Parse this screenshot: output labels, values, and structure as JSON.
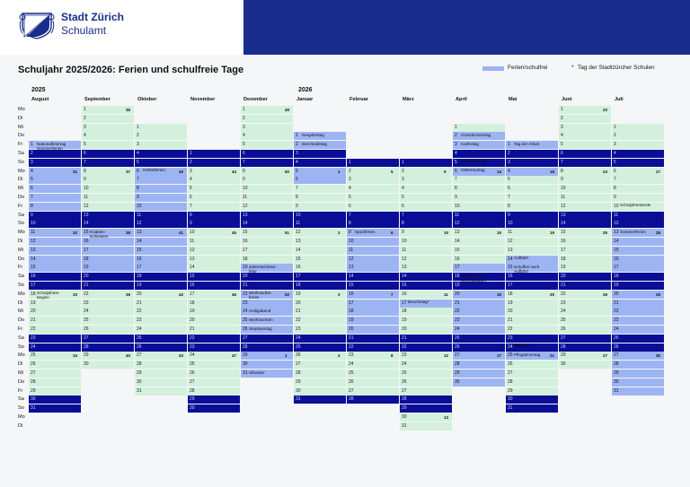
{
  "header": {
    "org_name": "Stadt Zürich",
    "org_sub": "Schulamt",
    "logo_icon": "zurich-coat-of-arms-icon",
    "band_color": "#1a2d8c"
  },
  "title": "Schuljahr 2025/2026: Ferien und schulfreie Tage",
  "legend": {
    "holiday_label": "Ferien/schulfrei",
    "marker": "*",
    "school_day_label": "Tag der Stadtzürcher Schulen"
  },
  "years": [
    "2025",
    "2026"
  ],
  "months": [
    {
      "name": "August",
      "first_weekday": 4,
      "days": 31,
      "holidays": [
        1,
        2,
        3,
        4,
        5,
        6,
        7,
        8,
        9,
        10,
        11,
        12,
        13,
        14,
        15,
        16,
        17
      ],
      "first_kw": 31
    },
    {
      "name": "September",
      "first_weekday": 0,
      "days": 30,
      "holidays": [
        15,
        16,
        17,
        18,
        19
      ],
      "first_kw": 36
    },
    {
      "name": "Oktober",
      "first_weekday": 2,
      "days": 31,
      "holidays": [
        6,
        7,
        8,
        9,
        10,
        11,
        12,
        13,
        14,
        15,
        16,
        17,
        18,
        19
      ],
      "first_kw": 40
    },
    {
      "name": "November",
      "first_weekday": 5,
      "days": 30,
      "holidays": [],
      "first_kw": 44
    },
    {
      "name": "Dezember",
      "first_weekday": 0,
      "days": 31,
      "holidays": [
        19,
        20,
        21,
        22,
        23,
        24,
        25,
        26,
        27,
        28,
        29,
        30,
        31
      ],
      "first_kw": 49
    },
    {
      "name": "Januar",
      "first_weekday": 3,
      "days": 31,
      "holidays": [
        1,
        2,
        3,
        4,
        5,
        6
      ],
      "first_kw": 1
    },
    {
      "name": "Februar",
      "first_weekday": 6,
      "days": 28,
      "holidays": [
        9,
        10,
        11,
        12,
        13,
        14,
        15,
        16,
        17,
        18,
        19,
        20,
        21,
        22
      ],
      "first_kw": 5
    },
    {
      "name": "März",
      "first_weekday": 6,
      "days": 31,
      "holidays": [
        17
      ],
      "first_kw": 9
    },
    {
      "name": "April",
      "first_weekday": 2,
      "days": 30,
      "holidays": [
        2,
        3,
        4,
        5,
        6,
        17,
        18,
        19,
        20,
        21,
        22,
        23,
        24,
        25,
        26,
        27,
        28,
        29,
        30
      ],
      "first_kw": 14
    },
    {
      "name": "Mai",
      "first_weekday": 4,
      "days": 31,
      "holidays": [
        1,
        2,
        3,
        4,
        14,
        15,
        16,
        17,
        24,
        25
      ],
      "first_kw": 18
    },
    {
      "name": "Juni",
      "first_weekday": 0,
      "days": 30,
      "holidays": [],
      "first_kw": 23
    },
    {
      "name": "Juli",
      "first_weekday": 2,
      "days": 31,
      "holidays": [
        11,
        12,
        13,
        14,
        15,
        16,
        17,
        18,
        19,
        20,
        21,
        22,
        23,
        24,
        25,
        26,
        27,
        28,
        29,
        30,
        31
      ],
      "first_kw": 27
    }
  ],
  "weekdays": [
    "Mo",
    "Di",
    "Mi",
    "Do",
    "Fr",
    "Sa",
    "So",
    "Mo",
    "Di",
    "Mi",
    "Do",
    "Fr",
    "Sa",
    "So",
    "Mo",
    "Di",
    "Mi",
    "Do",
    "Fr",
    "Sa",
    "So",
    "Mo",
    "Di",
    "Mi",
    "Do",
    "Fr",
    "Sa",
    "So",
    "Mo",
    "Di",
    "Mi",
    "Do",
    "Fr",
    "Sa",
    "So",
    "Mo",
    "Di"
  ],
  "events": [
    {
      "month": 0,
      "day": 1,
      "text": "Nationalfeiertag\nSommerferien"
    },
    {
      "month": 0,
      "day": 18,
      "text": "Schuljahres-\nbeginn"
    },
    {
      "month": 1,
      "day": 15,
      "text": "Knaben-\nschiessen"
    },
    {
      "month": 2,
      "day": 6,
      "text": "Herbstferien"
    },
    {
      "month": 4,
      "day": 22,
      "text": "Weihnachts-\nferien"
    },
    {
      "month": 4,
      "day": 24,
      "text": "Heiligabend"
    },
    {
      "month": 4,
      "day": 25,
      "text": "Weihnachten"
    },
    {
      "month": 4,
      "day": 26,
      "text": "Stephanstag"
    },
    {
      "month": 4,
      "day": 19,
      "text": "Jahresschluss-\nfeier"
    },
    {
      "month": 4,
      "day": 31,
      "text": "Silvester"
    },
    {
      "month": 5,
      "day": 1,
      "text": "Neujahrstag"
    },
    {
      "month": 5,
      "day": 2,
      "text": "Berchtoldstag"
    },
    {
      "month": 6,
      "day": 9,
      "text": "Sportferien"
    },
    {
      "month": 7,
      "day": 17,
      "text": "Beuchetag*"
    },
    {
      "month": 8,
      "day": 2,
      "text": "Gründonnerstag"
    },
    {
      "month": 8,
      "day": 3,
      "text": "Karfreitag"
    },
    {
      "month": 8,
      "day": 5,
      "text": "Ostersonntag"
    },
    {
      "month": 8,
      "day": 6,
      "text": "Ostermontag"
    },
    {
      "month": 8,
      "day": 18,
      "text": "Frühlingsferien\nSechseläuten"
    },
    {
      "month": 9,
      "day": 1,
      "text": "Tag der Arbeit"
    },
    {
      "month": 9,
      "day": 14,
      "text": "Auffahrt"
    },
    {
      "month": 9,
      "day": 15,
      "text": "schulfrei nach\nAuffahrt"
    },
    {
      "month": 9,
      "day": 24,
      "text": "Pfingsten"
    },
    {
      "month": 9,
      "day": 25,
      "text": "Pfingstmontag"
    },
    {
      "month": 11,
      "day": 10,
      "text": "Schuljahresende"
    },
    {
      "month": 11,
      "day": 13,
      "text": "Sommerferien"
    }
  ]
}
